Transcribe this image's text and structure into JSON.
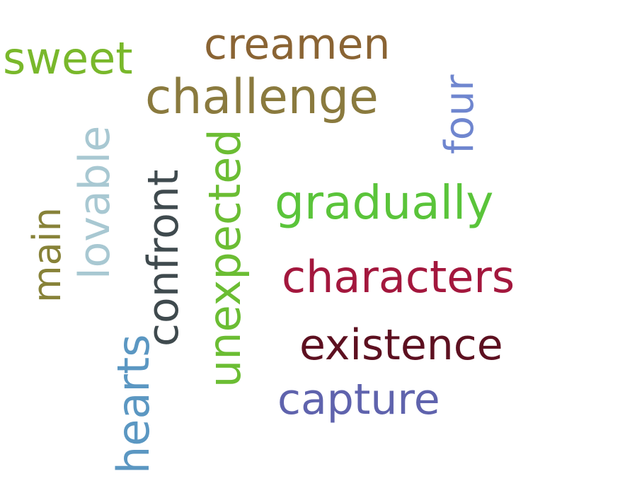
{
  "words": {
    "sweet": {
      "text": "sweet",
      "color": "#79b82b"
    },
    "creamen": {
      "text": "creamen",
      "color": "#8a6434"
    },
    "challenge": {
      "text": "challenge",
      "color": "#8a7a3e"
    },
    "gradually": {
      "text": "gradually",
      "color": "#5ac43a"
    },
    "characters": {
      "text": "characters",
      "color": "#a3173d"
    },
    "existence": {
      "text": "existence",
      "color": "#5d1020"
    },
    "capture": {
      "text": "capture",
      "color": "#5f63ad"
    },
    "main": {
      "text": "main",
      "color": "#878238"
    },
    "lovable": {
      "text": "lovable",
      "color": "#a8c8d2"
    },
    "confront": {
      "text": "confront",
      "color": "#3f4a4e"
    },
    "unexpected": {
      "text": "unexpected",
      "color": "#6bbd33"
    },
    "hearts": {
      "text": "hearts",
      "color": "#5b97c2"
    },
    "four": {
      "text": "four",
      "color": "#6f86cf"
    }
  }
}
